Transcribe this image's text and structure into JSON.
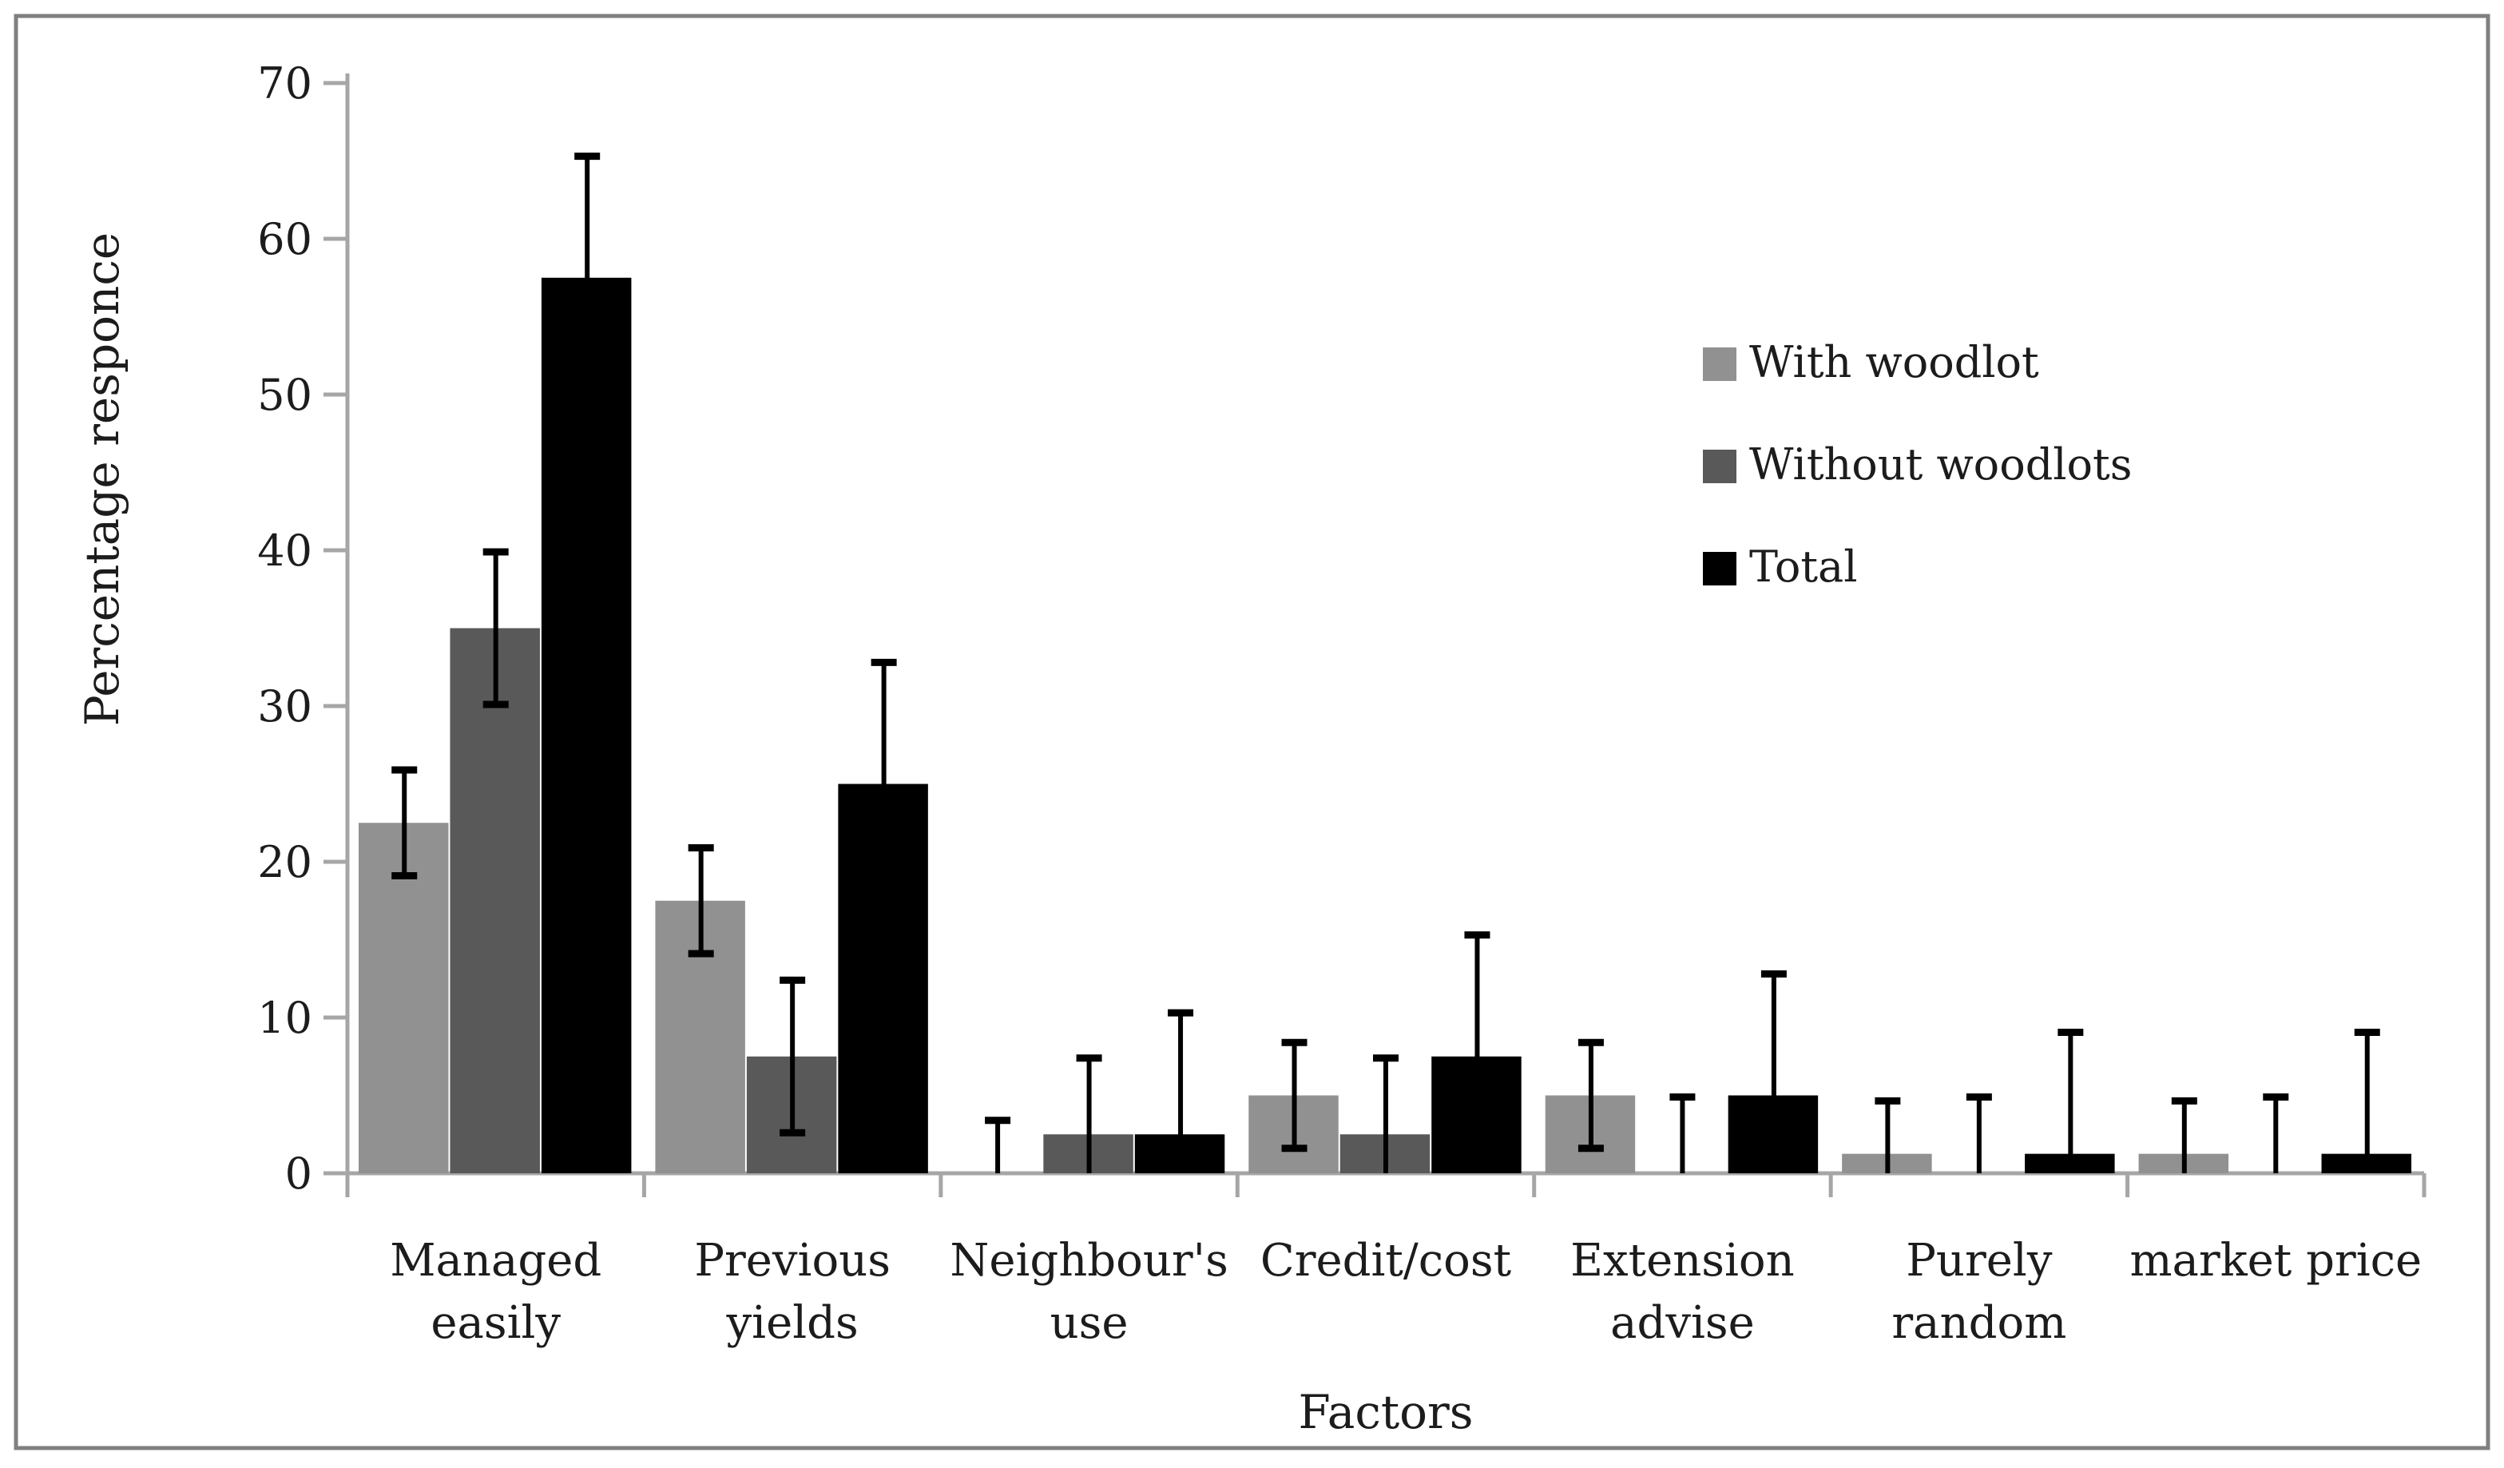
{
  "figure": {
    "background": "#ffffff",
    "border_color": "#7f7f7f",
    "axis_line_color": "#a6a6a6",
    "text_color": "#1c1c1c"
  },
  "chart_data": {
    "type": "bar",
    "title": "",
    "xlabel": "Factors",
    "ylabel": "Percentage responce",
    "ylim": [
      0,
      70
    ],
    "yticks": [
      0,
      10,
      20,
      30,
      40,
      50,
      60,
      70
    ],
    "grid": false,
    "legend_position": "inside-top-right",
    "categories": [
      "Managed easily",
      "Previous yields",
      "Neighbour's use",
      "Credit/cost",
      "Extension advise",
      "Purely random",
      "market price"
    ],
    "category_lines": [
      [
        "Managed",
        "easily"
      ],
      [
        "Previous",
        "yields"
      ],
      [
        "Neighbour's",
        "use"
      ],
      [
        "Credit/cost"
      ],
      [
        "Extension",
        "advise"
      ],
      [
        "Purely",
        "random"
      ],
      [
        "market price"
      ]
    ],
    "series": [
      {
        "name": "With woodlot",
        "color": "#919191",
        "error": 3.4,
        "values": [
          22.5,
          17.5,
          0,
          5,
          5,
          1.25,
          1.25
        ]
      },
      {
        "name": "Without woodlots",
        "color": "#595959",
        "error": 4.9,
        "values": [
          35,
          7.5,
          2.5,
          2.5,
          0,
          0,
          0
        ]
      },
      {
        "name": "Total",
        "color": "#000000",
        "error": 7.8,
        "values": [
          57.5,
          25,
          2.5,
          7.5,
          5,
          1.25,
          1.25
        ]
      }
    ]
  }
}
